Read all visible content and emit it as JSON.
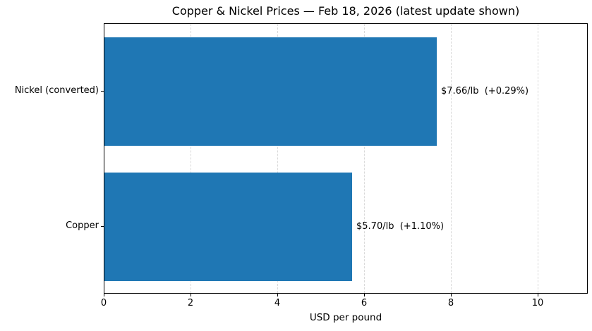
{
  "chart_data": {
    "type": "bar",
    "orientation": "horizontal",
    "title": "Copper & Nickel Prices — Feb 18, 2026 (latest update shown)",
    "xlabel": "USD per pound",
    "ylabel": "",
    "categories": [
      "Nickel (converted)",
      "Copper"
    ],
    "values": [
      7.66,
      5.7
    ],
    "bar_labels": [
      "$7.66/lb  (+0.29%)",
      "$5.70/lb  (+1.10%)"
    ],
    "xlim": [
      0,
      11.15
    ],
    "xticks": [
      0,
      2,
      4,
      6,
      8,
      10
    ],
    "grid": "vertical-dashed",
    "legend": "none",
    "colors": {
      "bar": "#1f77b4",
      "grid": "#d9d9d9",
      "spine": "#000000",
      "text": "#000000",
      "background": "#ffffff"
    }
  }
}
